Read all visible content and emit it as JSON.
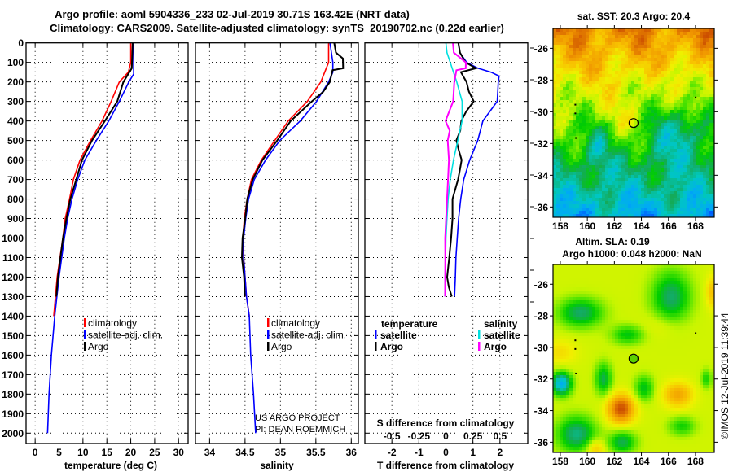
{
  "header": {
    "title_line1": "Argo profile: aoml 5904336_233 02-Jul-2019 30.71S 163.42E (NRT data)",
    "title_line2": "Climatology: CARS2009. Satellite-adjusted climatology: synTS_20190702.nc (0.22d earlier)"
  },
  "depth_ticks": [
    0,
    100,
    200,
    300,
    400,
    500,
    600,
    700,
    800,
    900,
    1000,
    1100,
    1200,
    1300,
    1400,
    1500,
    1600,
    1700,
    1800,
    1900,
    2000
  ],
  "colors": {
    "climatology": "#ff0000",
    "satellite": "#0000ff",
    "argo": "#000000",
    "sal_satellite": "#00e0e0",
    "sal_argo": "#ff00ff"
  },
  "chart_data": [
    {
      "type": "line",
      "name": "temperature",
      "xlabel": "temperature (deg C)",
      "ylabel": "pressure",
      "xlim": [
        -1.9,
        32.0
      ],
      "ylim": [
        0,
        2050
      ],
      "xticks": [
        0,
        5,
        10,
        15,
        20,
        25,
        30
      ],
      "grid": true,
      "legend": {
        "position": "bottom-right",
        "entries": [
          "climatology",
          "satellite-adj. clim.",
          "Argo"
        ]
      },
      "series": [
        {
          "name": "climatology",
          "color": "#ff0000",
          "depth": [
            0,
            100,
            150,
            200,
            300,
            400,
            500,
            600,
            700,
            800,
            900,
            1000,
            1200,
            1400
          ],
          "values": [
            20.0,
            20.0,
            19.5,
            17.6,
            15.9,
            14.0,
            11.6,
            9.4,
            8.0,
            7.2,
            6.3,
            5.8,
            4.6,
            3.9
          ]
        },
        {
          "name": "satellite-adj. clim.",
          "color": "#0000ff",
          "depth": [
            0,
            160,
            200,
            300,
            400,
            500,
            600,
            700,
            800,
            900,
            1000,
            1200,
            1400,
            1600,
            1800,
            2000
          ],
          "values": [
            20.6,
            20.6,
            19.6,
            17.6,
            15.4,
            12.8,
            10.4,
            8.9,
            7.7,
            6.8,
            6.1,
            5.0,
            4.1,
            3.4,
            2.9,
            2.6
          ]
        },
        {
          "name": "Argo",
          "color": "#000000",
          "depth": [
            0,
            130,
            200,
            300,
            400,
            500,
            600,
            700,
            800,
            900,
            1000,
            1100,
            1200,
            1300
          ],
          "values": [
            20.4,
            20.3,
            18.4,
            17.1,
            14.5,
            11.8,
            9.7,
            8.5,
            7.3,
            6.5,
            5.8,
            5.3,
            4.8,
            4.5
          ]
        }
      ]
    },
    {
      "type": "line",
      "name": "salinity",
      "xlabel": "salinity",
      "ylabel": "pressure",
      "xlim": [
        33.8,
        36.1
      ],
      "ylim": [
        0,
        2050
      ],
      "xticks": [
        34,
        34.5,
        35,
        35.5,
        36
      ],
      "grid": true,
      "legend": {
        "position": "bottom-right",
        "entries": [
          "climatology",
          "satellite-adj. clim.",
          "Argo"
        ]
      },
      "annotation": [
        "US ARGO PROJECT",
        "PI: DEAN ROEMMICH"
      ],
      "series": [
        {
          "name": "climatology",
          "color": "#ff0000",
          "depth": [
            0,
            100,
            200,
            300,
            400,
            500,
            600,
            700,
            800,
            900,
            1000,
            1100,
            1200,
            1300,
            1400
          ],
          "values": [
            35.68,
            35.68,
            35.57,
            35.38,
            35.11,
            34.92,
            34.73,
            34.59,
            34.53,
            34.49,
            34.47,
            34.48,
            34.5,
            34.52,
            34.56
          ]
        },
        {
          "name": "satellite-adj. clim.",
          "color": "#0000ff",
          "depth": [
            0,
            100,
            150,
            200,
            300,
            400,
            500,
            600,
            700,
            800,
            900,
            1000,
            1100,
            1200,
            1300,
            1400,
            1600,
            1800,
            2000
          ],
          "values": [
            35.7,
            35.74,
            35.74,
            35.68,
            35.51,
            35.28,
            34.99,
            34.79,
            34.63,
            34.55,
            34.51,
            34.48,
            34.48,
            34.5,
            34.52,
            34.56,
            34.58,
            34.62,
            34.65
          ]
        },
        {
          "name": "Argo",
          "color": "#000000",
          "depth": [
            0,
            50,
            80,
            130,
            140,
            200,
            250,
            300,
            400,
            500,
            600,
            700,
            800,
            900,
            1000,
            1100,
            1200,
            1300
          ],
          "values": [
            35.76,
            35.78,
            35.88,
            35.88,
            35.74,
            35.7,
            35.61,
            35.45,
            35.15,
            34.96,
            34.75,
            34.61,
            34.53,
            34.5,
            34.46,
            34.45,
            34.48,
            34.49
          ]
        }
      ]
    },
    {
      "type": "line",
      "name": "difference",
      "xlabel": "T difference from climatology",
      "xlabel_top": "S difference from climatology",
      "xlim": [
        -3.0,
        3.03
      ],
      "xticks": [
        -2,
        -1,
        0,
        1,
        2
      ],
      "s_xticks": [
        "-0.5",
        "-0.25",
        "0",
        "0.25",
        "0.5"
      ],
      "s_to_t_scale": 4,
      "ylim": [
        0,
        2050
      ],
      "grid": true,
      "legend": {
        "temperature_title": "temperature",
        "salinity_title": "salinity",
        "entries": [
          "satellite",
          "Argo"
        ]
      },
      "series": [
        {
          "name": "T satellite",
          "color": "#0000ff",
          "depth": [
            0,
            50,
            100,
            130,
            150,
            170,
            200,
            300,
            400,
            500,
            600,
            700,
            800,
            900,
            1000,
            1100,
            1200,
            1300
          ],
          "values": [
            0.46,
            0.52,
            0.77,
            1.19,
            1.67,
            1.97,
            1.94,
            1.9,
            1.37,
            1.18,
            0.88,
            0.66,
            0.55,
            0.47,
            0.42,
            0.37,
            0.35,
            0.32
          ]
        },
        {
          "name": "T Argo",
          "color": "#000000",
          "depth": [
            0,
            50,
            100,
            130,
            150,
            200,
            250,
            300,
            350,
            400,
            450,
            500,
            550,
            600,
            650,
            700,
            800,
            900,
            1000,
            1100,
            1200,
            1250,
            1300
          ],
          "values": [
            0.46,
            0.51,
            0.71,
            1.1,
            0.55,
            0.77,
            0.87,
            1.05,
            0.77,
            0.57,
            0.52,
            0.37,
            0.46,
            0.57,
            0.52,
            0.46,
            0.26,
            0.26,
            0.21,
            0.14,
            0.06,
            0.11,
            0.21
          ]
        },
        {
          "name": "S satellite",
          "color": "#00e0e0",
          "unit": "salinity",
          "depth": [
            0,
            50,
            100,
            200,
            300,
            400,
            450,
            500,
            600,
            700,
            800,
            900,
            1000,
            1300
          ],
          "values": [
            0.0,
            0.01,
            0.04,
            0.1,
            0.15,
            0.15,
            0.13,
            0.11,
            0.07,
            0.04,
            0.02,
            0.01,
            0.0,
            -0.01
          ]
        },
        {
          "name": "S Argo",
          "color": "#ff00ff",
          "unit": "salinity",
          "depth": [
            0,
            50,
            100,
            130,
            140,
            200,
            300,
            400,
            450,
            500,
            600,
            700,
            800,
            900,
            1000,
            1100,
            1300
          ],
          "values": [
            0.065,
            0.07,
            0.18,
            0.18,
            0.1,
            0.08,
            0.07,
            0.0,
            0.04,
            0.02,
            0.03,
            0.02,
            0.01,
            0.0,
            -0.01,
            -0.01,
            -0.01
          ]
        }
      ]
    }
  ],
  "maps": {
    "sst": {
      "title": "sat. SST: 20.3 Argo: 20.4",
      "lon_ticks": [
        158,
        160,
        162,
        164,
        166,
        168
      ],
      "lat_ticks": [
        -26,
        -28,
        -30,
        -32,
        -34,
        -36
      ],
      "lon_range": [
        157.46,
        169.39
      ],
      "lat_range": [
        -24.75,
        -36.65
      ],
      "marker": {
        "lon": 163.42,
        "lat": -30.71
      }
    },
    "sla": {
      "title_line1": "Altim. SLA: 0.19",
      "title_line2": "Argo h1000: 0.048 h2000: NaN",
      "lon_ticks": [
        158,
        160,
        162,
        164,
        166,
        168
      ],
      "lat_ticks": [
        -26,
        -28,
        -30,
        -32,
        -34,
        -36
      ],
      "lon_range": [
        157.46,
        169.39
      ],
      "lat_range": [
        -24.75,
        -36.65
      ],
      "marker": {
        "lon": 163.42,
        "lat": -30.71
      }
    }
  },
  "credit": "©IMOS 12-Jul-2019 11:39:44"
}
